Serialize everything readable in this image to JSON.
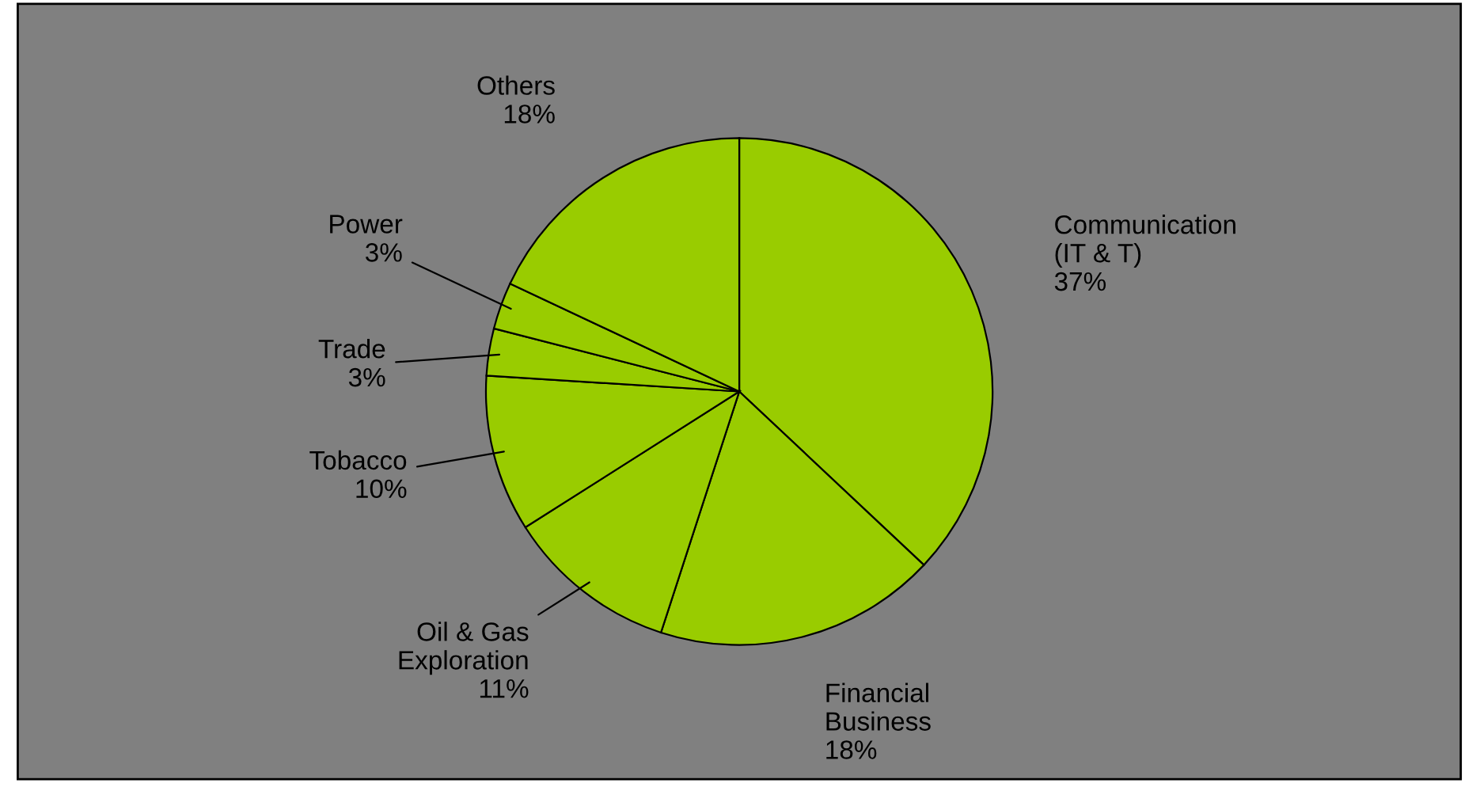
{
  "chart_data": {
    "type": "pie",
    "categories": [
      "Communication\n(IT & T)",
      "Financial\nBusiness",
      "Oil & Gas\nExploration",
      "Tobacco",
      "Trade",
      "Power",
      "Others"
    ],
    "values": [
      37,
      18,
      11,
      10,
      3,
      3,
      18
    ],
    "value_labels": [
      "37%",
      "18%",
      "11%",
      "10%",
      "3%",
      "3%",
      "18%"
    ],
    "colors": [
      "#99cc00",
      "#99cc00",
      "#99cc00",
      "#99cc00",
      "#99cc00",
      "#99cc00",
      "#99cc00"
    ]
  }
}
